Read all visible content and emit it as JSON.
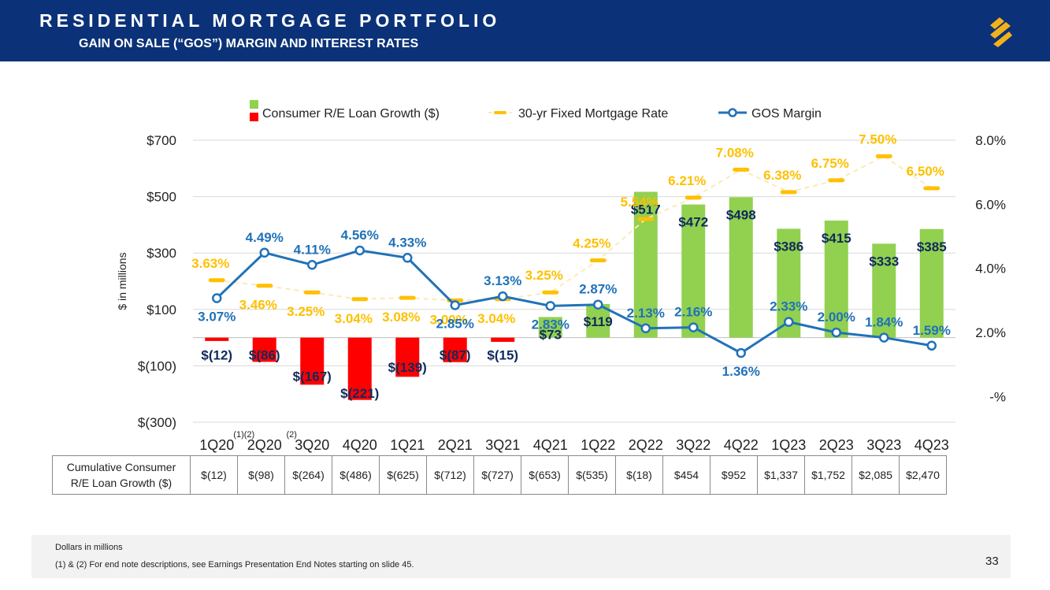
{
  "header": {
    "title": "RESIDENTIAL MORTGAGE PORTFOLIO",
    "subtitle": "GAIN ON SALE (“GOS”) MARGIN AND INTEREST RATES",
    "logo_icon": "brand-s-logo-icon"
  },
  "colors": {
    "header_bg": "#0b3278",
    "bar_positive": "#92d050",
    "bar_negative": "#ff0000",
    "mortgage_rate": "#ffc000",
    "gos_margin": "#2072b8",
    "bar_label": "#102a5c"
  },
  "chart_data": {
    "type": "bar+line",
    "categories": [
      "1Q20",
      "2Q20",
      "3Q20",
      "4Q20",
      "1Q21",
      "2Q21",
      "3Q21",
      "4Q21",
      "1Q22",
      "2Q22",
      "3Q22",
      "4Q22",
      "1Q23",
      "2Q23",
      "3Q23",
      "4Q23"
    ],
    "ylabel": "$ in millions",
    "ylim": [
      -300,
      700
    ],
    "y_ticks": [
      700,
      500,
      300,
      100,
      -100,
      -300
    ],
    "y_tick_labels": [
      "$700",
      "$500",
      "$300",
      "$100",
      "$(100)",
      "$(300)"
    ],
    "y2lim": [
      -0.8,
      8.0
    ],
    "y2_ticks": [
      8,
      6,
      4,
      2,
      0
    ],
    "y2_tick_labels": [
      "8.0%",
      "6.0%",
      "4.0%",
      "2.0%",
      "-%"
    ],
    "footnote_marks": [
      {
        "category_index": 1,
        "text": "(1)(2)"
      },
      {
        "category_index": 2,
        "text": "(2)"
      }
    ],
    "legend": [
      {
        "name": "Consumer R/E Loan Growth ($)",
        "kind": "bar"
      },
      {
        "name": "30-yr Fixed Mortgage Rate",
        "kind": "dash-line"
      },
      {
        "name": "GOS Margin",
        "kind": "line-marker"
      }
    ],
    "series": [
      {
        "name": "Consumer R/E Loan Growth ($)",
        "type": "bar",
        "axis": "left",
        "values": [
          -12,
          -86,
          -167,
          -221,
          -139,
          -87,
          -15,
          73,
          119,
          517,
          472,
          498,
          386,
          415,
          333,
          385
        ],
        "labels": [
          "$(12)",
          "$(86)",
          "$(167)",
          "$(221)",
          "$(139)",
          "$(87)",
          "$(15)",
          "$73",
          "$119",
          "$517",
          "$472",
          "$498",
          "$386",
          "$415",
          "$333",
          "$385"
        ]
      },
      {
        "name": "30-yr Fixed Mortgage Rate",
        "type": "line",
        "axis": "right",
        "values": [
          3.63,
          3.46,
          3.25,
          3.04,
          3.08,
          3.0,
          3.04,
          3.25,
          4.25,
          5.54,
          6.21,
          7.08,
          6.38,
          6.75,
          7.5,
          6.5
        ],
        "labels": [
          "3.63%",
          "3.46%",
          "3.25%",
          "3.04%",
          "3.08%",
          "3.00%",
          "3.04%",
          "3.25%",
          "4.25%",
          "5.54%",
          "6.21%",
          "7.08%",
          "6.38%",
          "6.75%",
          "7.50%",
          "6.50%"
        ]
      },
      {
        "name": "GOS Margin",
        "type": "line",
        "axis": "right",
        "values": [
          3.07,
          4.49,
          4.11,
          4.56,
          4.33,
          2.85,
          3.13,
          2.83,
          2.87,
          2.13,
          2.16,
          1.36,
          2.33,
          2.0,
          1.84,
          1.59
        ],
        "labels": [
          "3.07%",
          "4.49%",
          "4.11%",
          "4.56%",
          "4.33%",
          "2.85%",
          "3.13%",
          "2.83%",
          "2.87%",
          "2.13%",
          "2.16%",
          "1.36%",
          "2.33%",
          "2.00%",
          "1.84%",
          "1.59%"
        ]
      }
    ]
  },
  "table": {
    "row_label_line1": "Cumulative Consumer",
    "row_label_line2": "R/E Loan Growth ($)",
    "values": [
      "$(12)",
      "$(98)",
      "$(264)",
      "$(486)",
      "$(625)",
      "$(712)",
      "$(727)",
      "$(653)",
      "$(535)",
      "$(18)",
      "$454",
      "$952",
      "$1,337",
      "$1,752",
      "$2,085",
      "$2,470"
    ]
  },
  "footer": {
    "line1": "Dollars in millions",
    "line2": "(1) & (2)  For end note descriptions, see Earnings Presentation End Notes starting on slide 45.",
    "page_number": "33"
  }
}
